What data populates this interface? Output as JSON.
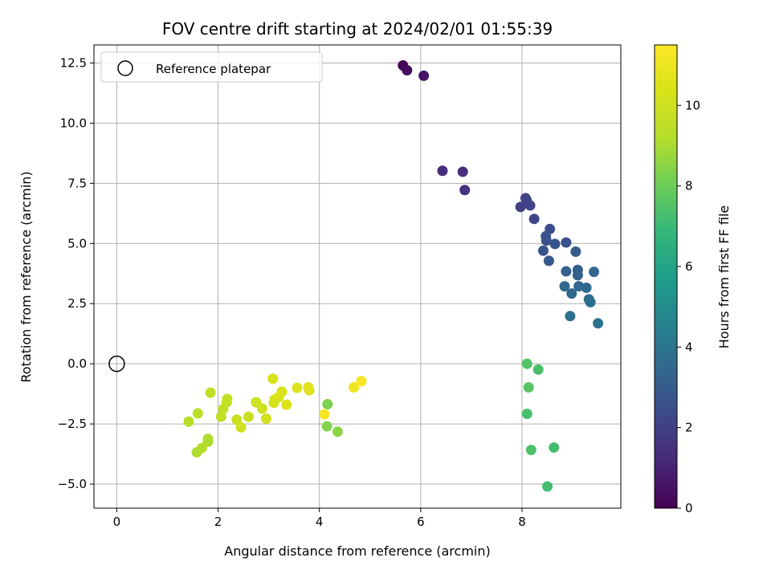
{
  "chart_data": {
    "type": "scatter",
    "title": "FOV centre drift starting at 2024/02/01 01:55:39",
    "xlabel": "Angular distance from reference (arcmin)",
    "ylabel": "Rotation from reference (arcmin)",
    "xlim": [
      -0.45,
      9.95
    ],
    "ylim": [
      -6.0,
      13.25
    ],
    "xticks": [
      0,
      2,
      4,
      6,
      8
    ],
    "xtick_labels": [
      "0",
      "2",
      "4",
      "6",
      "8"
    ],
    "yticks": [
      -5.0,
      -2.5,
      0.0,
      2.5,
      5.0,
      7.5,
      10.0,
      12.5
    ],
    "ytick_labels": [
      "−5.0",
      "−2.5",
      "0.0",
      "2.5",
      "5.0",
      "7.5",
      "10.0",
      "12.5"
    ],
    "grid": true,
    "legend": {
      "position": "upper-left",
      "entries": [
        "Reference platepar"
      ]
    },
    "colorbar": {
      "label": "Hours from first FF file",
      "colormap": "viridis",
      "range": [
        0,
        11.5
      ],
      "ticks": [
        0,
        2,
        4,
        6,
        8,
        10
      ],
      "tick_labels": [
        "0",
        "2",
        "4",
        "6",
        "8",
        "10"
      ]
    },
    "reference_point": {
      "x": 0,
      "y": 0
    },
    "points": [
      {
        "x": 5.65,
        "y": 12.4,
        "c": 0.1
      },
      {
        "x": 5.73,
        "y": 12.2,
        "c": 0.3
      },
      {
        "x": 6.06,
        "y": 11.97,
        "c": 0.6
      },
      {
        "x": 6.43,
        "y": 8.02,
        "c": 1.3
      },
      {
        "x": 6.83,
        "y": 7.98,
        "c": 1.4
      },
      {
        "x": 6.87,
        "y": 7.22,
        "c": 1.5
      },
      {
        "x": 8.07,
        "y": 6.88,
        "c": 2.0
      },
      {
        "x": 8.09,
        "y": 6.8,
        "c": 2.1
      },
      {
        "x": 7.97,
        "y": 6.52,
        "c": 2.0
      },
      {
        "x": 8.16,
        "y": 6.58,
        "c": 2.1
      },
      {
        "x": 8.24,
        "y": 6.02,
        "c": 2.2
      },
      {
        "x": 8.55,
        "y": 5.6,
        "c": 2.5
      },
      {
        "x": 8.47,
        "y": 5.3,
        "c": 2.6
      },
      {
        "x": 8.48,
        "y": 5.12,
        "c": 2.6
      },
      {
        "x": 8.65,
        "y": 4.98,
        "c": 2.7
      },
      {
        "x": 8.87,
        "y": 5.04,
        "c": 2.6
      },
      {
        "x": 8.42,
        "y": 4.7,
        "c": 2.7
      },
      {
        "x": 8.53,
        "y": 4.28,
        "c": 2.8
      },
      {
        "x": 9.06,
        "y": 4.66,
        "c": 3.0
      },
      {
        "x": 8.87,
        "y": 3.84,
        "c": 3.1
      },
      {
        "x": 9.1,
        "y": 3.9,
        "c": 3.1
      },
      {
        "x": 9.1,
        "y": 3.68,
        "c": 3.2
      },
      {
        "x": 9.42,
        "y": 3.82,
        "c": 3.3
      },
      {
        "x": 8.84,
        "y": 3.22,
        "c": 3.4
      },
      {
        "x": 9.12,
        "y": 3.22,
        "c": 3.4
      },
      {
        "x": 9.27,
        "y": 3.16,
        "c": 3.5
      },
      {
        "x": 8.98,
        "y": 2.92,
        "c": 3.5
      },
      {
        "x": 9.32,
        "y": 2.68,
        "c": 3.6
      },
      {
        "x": 9.35,
        "y": 2.56,
        "c": 3.7
      },
      {
        "x": 8.95,
        "y": 1.98,
        "c": 3.8
      },
      {
        "x": 9.5,
        "y": 1.68,
        "c": 3.9
      },
      {
        "x": 8.1,
        "y": 0.0,
        "c": 7.5
      },
      {
        "x": 8.32,
        "y": -0.24,
        "c": 7.3
      },
      {
        "x": 8.13,
        "y": -0.98,
        "c": 7.6
      },
      {
        "x": 8.1,
        "y": -2.08,
        "c": 7.3
      },
      {
        "x": 8.18,
        "y": -3.58,
        "c": 7.4
      },
      {
        "x": 8.63,
        "y": -3.48,
        "c": 7.2
      },
      {
        "x": 8.5,
        "y": -5.1,
        "c": 7.2
      },
      {
        "x": 4.16,
        "y": -1.68,
        "c": 8.3
      },
      {
        "x": 4.15,
        "y": -2.6,
        "c": 8.4
      },
      {
        "x": 4.36,
        "y": -2.82,
        "c": 8.5
      },
      {
        "x": 1.85,
        "y": -1.2,
        "c": 9.6
      },
      {
        "x": 2.18,
        "y": -1.46,
        "c": 9.7
      },
      {
        "x": 2.17,
        "y": -1.6,
        "c": 9.7
      },
      {
        "x": 2.1,
        "y": -1.88,
        "c": 9.6
      },
      {
        "x": 2.06,
        "y": -2.2,
        "c": 9.6
      },
      {
        "x": 1.6,
        "y": -2.06,
        "c": 9.4
      },
      {
        "x": 1.42,
        "y": -2.4,
        "c": 9.3
      },
      {
        "x": 1.8,
        "y": -3.12,
        "c": 9.1
      },
      {
        "x": 1.8,
        "y": -3.24,
        "c": 9.1
      },
      {
        "x": 1.68,
        "y": -3.5,
        "c": 9.2
      },
      {
        "x": 1.58,
        "y": -3.68,
        "c": 9.1
      },
      {
        "x": 2.37,
        "y": -2.32,
        "c": 9.9
      },
      {
        "x": 2.45,
        "y": -2.64,
        "c": 10.0
      },
      {
        "x": 2.6,
        "y": -2.2,
        "c": 9.9
      },
      {
        "x": 2.75,
        "y": -1.6,
        "c": 10.0
      },
      {
        "x": 2.87,
        "y": -1.86,
        "c": 10.1
      },
      {
        "x": 2.95,
        "y": -2.28,
        "c": 10.1
      },
      {
        "x": 3.08,
        "y": -0.62,
        "c": 10.3
      },
      {
        "x": 3.12,
        "y": -1.48,
        "c": 10.3
      },
      {
        "x": 3.1,
        "y": -1.62,
        "c": 10.3
      },
      {
        "x": 3.2,
        "y": -1.38,
        "c": 10.4
      },
      {
        "x": 3.26,
        "y": -1.16,
        "c": 10.4
      },
      {
        "x": 3.35,
        "y": -1.7,
        "c": 10.4
      },
      {
        "x": 3.56,
        "y": -1.0,
        "c": 10.5
      },
      {
        "x": 3.78,
        "y": -0.98,
        "c": 10.6
      },
      {
        "x": 3.8,
        "y": -1.1,
        "c": 10.6
      },
      {
        "x": 4.1,
        "y": -2.1,
        "c": 11.3
      },
      {
        "x": 4.68,
        "y": -0.98,
        "c": 11.0
      },
      {
        "x": 4.83,
        "y": -0.72,
        "c": 11.3
      }
    ]
  }
}
